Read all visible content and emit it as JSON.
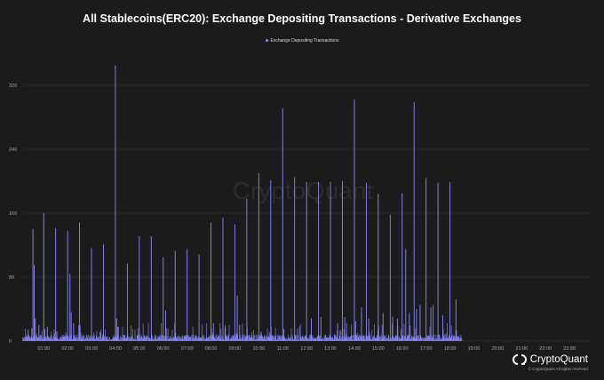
{
  "chart_data": {
    "type": "bar",
    "title": "All Stablecoins(ERC20): Exchange Depositing Transactions - Derivative Exchanges",
    "legend": [
      "Exchange Depositing Transactions"
    ],
    "series_color": "#8c88ff",
    "xlabel": "",
    "ylabel": "",
    "ylim": [
      0,
      360
    ],
    "yticks": [
      0,
      80,
      160,
      240,
      320
    ],
    "xlim_hours": [
      0.1,
      24.0
    ],
    "xticks": [
      "01:00",
      "02:00",
      "03:00",
      "04:00",
      "05:00",
      "06:00",
      "07:00",
      "08:00",
      "09:00",
      "10:00",
      "11:00",
      "12:00",
      "13:00",
      "14:00",
      "15:00",
      "16:00",
      "17:00",
      "18:00",
      "19:00",
      "20:00",
      "21:00",
      "22:00",
      "23:00"
    ],
    "grid": true,
    "baseline_noise_max": 12,
    "data_end_hour": 18.5,
    "spikes": [
      {
        "x": 0.25,
        "y": 8
      },
      {
        "x": 0.35,
        "y": 14
      },
      {
        "x": 0.5,
        "y": 16
      },
      {
        "x": 0.55,
        "y": 140
      },
      {
        "x": 0.6,
        "y": 95
      },
      {
        "x": 0.65,
        "y": 28
      },
      {
        "x": 0.8,
        "y": 20
      },
      {
        "x": 1.0,
        "y": 160
      },
      {
        "x": 1.05,
        "y": 15
      },
      {
        "x": 1.15,
        "y": 18
      },
      {
        "x": 1.5,
        "y": 141
      },
      {
        "x": 1.55,
        "y": 12
      },
      {
        "x": 2.0,
        "y": 138
      },
      {
        "x": 2.1,
        "y": 84
      },
      {
        "x": 2.15,
        "y": 36
      },
      {
        "x": 2.25,
        "y": 22
      },
      {
        "x": 2.5,
        "y": 148
      },
      {
        "x": 2.55,
        "y": 10
      },
      {
        "x": 3.0,
        "y": 116
      },
      {
        "x": 3.5,
        "y": 121
      },
      {
        "x": 4.0,
        "y": 345
      },
      {
        "x": 4.05,
        "y": 28
      },
      {
        "x": 4.1,
        "y": 18
      },
      {
        "x": 4.5,
        "y": 97
      },
      {
        "x": 5.0,
        "y": 131
      },
      {
        "x": 5.5,
        "y": 131
      },
      {
        "x": 6.0,
        "y": 105
      },
      {
        "x": 6.1,
        "y": 38
      },
      {
        "x": 6.5,
        "y": 113
      },
      {
        "x": 7.0,
        "y": 115
      },
      {
        "x": 7.5,
        "y": 108
      },
      {
        "x": 8.0,
        "y": 148
      },
      {
        "x": 8.1,
        "y": 22
      },
      {
        "x": 8.5,
        "y": 154
      },
      {
        "x": 8.6,
        "y": 18
      },
      {
        "x": 9.0,
        "y": 146
      },
      {
        "x": 9.1,
        "y": 57
      },
      {
        "x": 9.2,
        "y": 20
      },
      {
        "x": 9.5,
        "y": 178
      },
      {
        "x": 10.0,
        "y": 210
      },
      {
        "x": 10.1,
        "y": 12
      },
      {
        "x": 10.5,
        "y": 201
      },
      {
        "x": 11.0,
        "y": 291
      },
      {
        "x": 11.05,
        "y": 15
      },
      {
        "x": 11.5,
        "y": 205
      },
      {
        "x": 12.0,
        "y": 199
      },
      {
        "x": 12.2,
        "y": 28
      },
      {
        "x": 12.5,
        "y": 199
      },
      {
        "x": 12.6,
        "y": 30
      },
      {
        "x": 13.0,
        "y": 199
      },
      {
        "x": 13.3,
        "y": 22
      },
      {
        "x": 13.5,
        "y": 200
      },
      {
        "x": 13.6,
        "y": 30
      },
      {
        "x": 14.0,
        "y": 302
      },
      {
        "x": 14.05,
        "y": 25
      },
      {
        "x": 14.3,
        "y": 42
      },
      {
        "x": 14.5,
        "y": 198
      },
      {
        "x": 14.6,
        "y": 28
      },
      {
        "x": 15.0,
        "y": 184
      },
      {
        "x": 15.2,
        "y": 35
      },
      {
        "x": 15.5,
        "y": 158
      },
      {
        "x": 15.6,
        "y": 30
      },
      {
        "x": 15.8,
        "y": 28
      },
      {
        "x": 16.0,
        "y": 185
      },
      {
        "x": 16.15,
        "y": 115
      },
      {
        "x": 16.3,
        "y": 35
      },
      {
        "x": 16.5,
        "y": 299
      },
      {
        "x": 16.6,
        "y": 40
      },
      {
        "x": 16.75,
        "y": 45
      },
      {
        "x": 17.0,
        "y": 204
      },
      {
        "x": 17.2,
        "y": 42
      },
      {
        "x": 17.3,
        "y": 45
      },
      {
        "x": 17.5,
        "y": 198
      },
      {
        "x": 17.7,
        "y": 32
      },
      {
        "x": 18.0,
        "y": 199
      },
      {
        "x": 18.25,
        "y": 52
      }
    ],
    "brand": "CryptoQuant",
    "watermark": "CryptoQuant",
    "copyright": "© CryptoQuant All rights reserved."
  }
}
